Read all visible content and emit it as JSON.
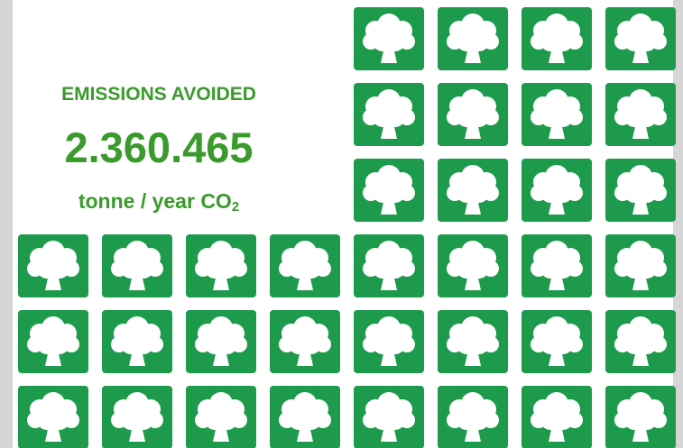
{
  "header": {
    "title": "EMISSIONS AVOIDED",
    "value": "2.360.465",
    "unit": "tonne / year CO",
    "unit_subscript": "2"
  }
}
